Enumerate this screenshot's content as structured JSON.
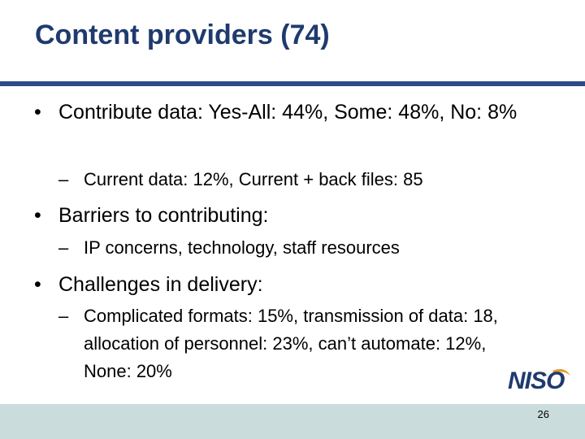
{
  "title": "Content providers (74)",
  "bullets": [
    {
      "text": "Contribute data: Yes-All: 44%, Some: 48%, No: 8%",
      "subs": [
        "Current data: 12%, Current + back files: 85"
      ]
    },
    {
      "text": "Barriers to contributing:",
      "subs": [
        "IP concerns, technology, staff resources"
      ]
    },
    {
      "text": "Challenges in delivery:",
      "subs": [
        "Complicated formats: 15%, transmission of data: 18, allocation of personnel: 23%, can’t automate: 12%, None: 20%"
      ]
    }
  ],
  "logo": "NISO",
  "page_number": "26"
}
